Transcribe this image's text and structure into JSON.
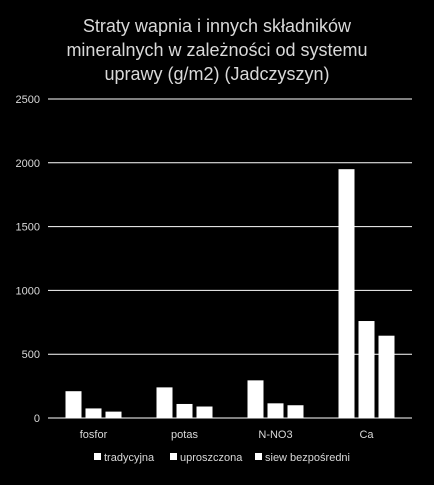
{
  "chart_data": {
    "type": "bar",
    "title_lines": [
      "Straty wapnia i innych składników",
      "mineralnych w zależności od systemu",
      "uprawy (g/m2) (Jadczyszyn)"
    ],
    "categories": [
      "fosfor",
      "potas",
      "N-NO3",
      "Ca"
    ],
    "series": [
      {
        "name": "tradycyjna",
        "values": [
          210,
          240,
          295,
          1950
        ]
      },
      {
        "name": "uproszczona",
        "values": [
          75,
          110,
          115,
          760
        ]
      },
      {
        "name": "siew bezpośredni",
        "values": [
          50,
          90,
          100,
          645
        ]
      }
    ],
    "ylim": [
      0,
      2500
    ],
    "yticks": [
      0,
      500,
      1000,
      1500,
      2000,
      2500
    ],
    "grid": true,
    "legend_position": "bottom",
    "colors": {
      "background": "#000000",
      "bars": "#ffffff",
      "grid": "#ffffff",
      "text": "#d9d9d9"
    }
  }
}
